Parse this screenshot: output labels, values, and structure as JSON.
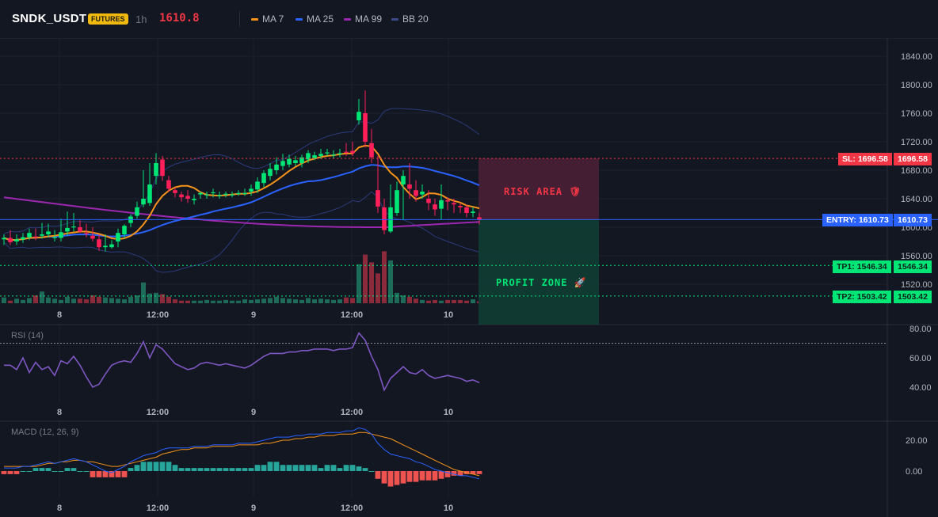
{
  "header": {
    "symbol": "SNDK_USDT",
    "badge": "FUTURES",
    "timeframe": "1h",
    "price": "1610.8",
    "indicators": [
      {
        "label": "MA 7",
        "color": "#f7931a"
      },
      {
        "label": "MA 25",
        "color": "#2962ff"
      },
      {
        "label": "MA 99",
        "color": "#9c27b0"
      },
      {
        "label": "BB 20",
        "color": "#3b4a8c"
      }
    ]
  },
  "levels": {
    "sl": {
      "label": "SL: 1696.58",
      "value": "1696.58",
      "price": 1696.58,
      "color": "#f23645"
    },
    "entry": {
      "label": "ENTRY: 1610.73",
      "value": "1610.73",
      "price": 1610.73,
      "color": "#2962ff"
    },
    "tp1": {
      "label": "TP1: 1546.34",
      "value": "1546.34",
      "price": 1546.34,
      "color": "#00e676"
    },
    "tp2": {
      "label": "TP2: 1503.42",
      "value": "1503.42",
      "price": 1503.42,
      "color": "#00e676"
    }
  },
  "zones": {
    "risk": {
      "label": "RISK AREA 🛡"
    },
    "profit": {
      "label": "PROFIT ZONE 🚀"
    }
  },
  "price_axis": {
    "ticks": [
      "1840.00",
      "1800.00",
      "1760.00",
      "1720.00",
      "1680.00",
      "1640.00",
      "1600.00",
      "1560.00",
      "1520.00"
    ],
    "values": [
      1840,
      1800,
      1760,
      1720,
      1680,
      1640,
      1600,
      1560,
      1520
    ]
  },
  "time_axis": {
    "labels": [
      "8",
      "12:00",
      "9",
      "12:00",
      "10"
    ]
  },
  "rsi": {
    "title": "RSI (14)",
    "ticks": [
      "80.00",
      "60.00",
      "40.00"
    ],
    "values": [
      80,
      60,
      40
    ]
  },
  "macd": {
    "title": "MACD (12, 26, 9)",
    "ticks": [
      "20.00",
      "0.00"
    ],
    "values": [
      20,
      0
    ]
  },
  "chart_data": {
    "type": "candlestick",
    "series": [
      {
        "name": "Price OHLC",
        "open": [
          1583,
          1585,
          1580,
          1583,
          1586,
          1587,
          1588,
          1590,
          1585,
          1585,
          1594,
          1600,
          1600,
          1592,
          1588,
          1583,
          1572,
          1572,
          1580,
          1590,
          1606,
          1616,
          1632,
          1634,
          1672,
          1695,
          1666,
          1652,
          1646,
          1644,
          1638,
          1646,
          1646,
          1648,
          1644,
          1646,
          1646,
          1648,
          1648,
          1650,
          1653,
          1662,
          1672,
          1680,
          1686,
          1688,
          1690,
          1690,
          1695,
          1697,
          1700,
          1704,
          1702,
          1704,
          1706,
          1707,
          1750,
          1760,
          1718,
          1652,
          1628,
          1594,
          1620,
          1660,
          1660,
          1652,
          1646,
          1640,
          1632,
          1626,
          1638,
          1634,
          1630,
          1628,
          1620,
          1614
        ],
        "close": [
          1585,
          1579,
          1583,
          1586,
          1592,
          1586,
          1590,
          1594,
          1586,
          1593,
          1599,
          1601,
          1594,
          1591,
          1584,
          1572,
          1574,
          1576,
          1592,
          1602,
          1615,
          1628,
          1640,
          1660,
          1690,
          1672,
          1654,
          1648,
          1642,
          1640,
          1640,
          1648,
          1646,
          1649,
          1645,
          1647,
          1646,
          1648,
          1648,
          1654,
          1664,
          1676,
          1682,
          1688,
          1693,
          1696,
          1694,
          1698,
          1704,
          1701,
          1703,
          1705,
          1702,
          1704,
          1705,
          1704,
          1762,
          1720,
          1698,
          1629,
          1596,
          1628,
          1652,
          1672,
          1654,
          1644,
          1650,
          1634,
          1625,
          1638,
          1636,
          1632,
          1628,
          1620,
          1622,
          1610
        ],
        "high": [
          1590,
          1596,
          1590,
          1592,
          1598,
          1598,
          1606,
          1605,
          1596,
          1612,
          1622,
          1620,
          1610,
          1605,
          1600,
          1590,
          1590,
          1582,
          1598,
          1604,
          1618,
          1636,
          1680,
          1690,
          1704,
          1700,
          1672,
          1656,
          1650,
          1652,
          1646,
          1650,
          1650,
          1654,
          1650,
          1650,
          1650,
          1652,
          1654,
          1660,
          1670,
          1680,
          1690,
          1698,
          1703,
          1702,
          1700,
          1702,
          1708,
          1706,
          1710,
          1710,
          1708,
          1710,
          1718,
          1720,
          1780,
          1792,
          1738,
          1700,
          1640,
          1660,
          1664,
          1680,
          1690,
          1666,
          1660,
          1652,
          1640,
          1660,
          1642,
          1640,
          1634,
          1632,
          1628,
          1620
        ],
        "low": [
          1575,
          1575,
          1575,
          1578,
          1582,
          1582,
          1584,
          1586,
          1580,
          1580,
          1588,
          1594,
          1592,
          1586,
          1580,
          1567,
          1566,
          1570,
          1572,
          1584,
          1600,
          1612,
          1628,
          1630,
          1660,
          1665,
          1650,
          1642,
          1636,
          1634,
          1632,
          1640,
          1640,
          1642,
          1640,
          1642,
          1642,
          1644,
          1644,
          1644,
          1648,
          1656,
          1666,
          1674,
          1680,
          1684,
          1686,
          1684,
          1690,
          1694,
          1696,
          1700,
          1696,
          1698,
          1700,
          1700,
          1744,
          1712,
          1690,
          1620,
          1590,
          1592,
          1616,
          1610,
          1640,
          1636,
          1640,
          1624,
          1616,
          1610,
          1624,
          1620,
          1620,
          1614,
          1614,
          1604
        ]
      },
      {
        "name": "Volume",
        "values": [
          9,
          4,
          7,
          5,
          8,
          12,
          18,
          9,
          7,
          5,
          10,
          7,
          7,
          6,
          12,
          10,
          9,
          8,
          7,
          6,
          10,
          12,
          32,
          15,
          16,
          14,
          10,
          6,
          4,
          4,
          4,
          4,
          5,
          4,
          4,
          5,
          4,
          4,
          6,
          5,
          6,
          7,
          8,
          10,
          8,
          7,
          6,
          5,
          8,
          6,
          7,
          6,
          5,
          6,
          9,
          8,
          60,
          75,
          63,
          46,
          80,
          66,
          16,
          12,
          10,
          7,
          5,
          4,
          5,
          4,
          5,
          5,
          5,
          4,
          6,
          3
        ]
      },
      {
        "name": "RSI",
        "values": [
          55,
          55,
          52,
          60,
          50,
          57,
          52,
          54,
          48,
          58,
          56,
          61,
          55,
          47,
          40,
          42,
          49,
          55,
          57,
          58,
          57,
          63,
          71,
          60,
          69,
          66,
          61,
          56,
          54,
          52,
          53,
          56,
          57,
          56,
          55,
          56,
          55,
          54,
          53,
          55,
          58,
          61,
          63,
          63,
          63,
          64,
          64,
          65,
          65,
          66,
          66,
          66,
          65,
          66,
          66,
          67,
          77,
          72,
          61,
          52,
          38,
          46,
          50,
          54,
          50,
          49,
          52,
          48,
          46,
          47,
          48,
          47,
          46,
          44,
          45,
          43
        ]
      },
      {
        "name": "MACD",
        "values": [
          2,
          2,
          2,
          3,
          3,
          4,
          5,
          6,
          5,
          6,
          7,
          8,
          7,
          6,
          4,
          2,
          0,
          -1,
          1,
          3,
          6,
          8,
          10,
          11,
          12,
          14,
          15,
          15,
          15,
          15,
          16,
          16,
          16,
          17,
          17,
          17,
          17,
          18,
          18,
          18,
          19,
          20,
          21,
          22,
          22,
          22,
          23,
          23,
          24,
          24,
          24,
          25,
          25,
          25,
          26,
          26,
          28,
          27,
          24,
          18,
          14,
          11,
          10,
          9,
          8,
          6,
          5,
          3,
          1,
          0,
          -1,
          -2,
          -3,
          -3,
          -4,
          -5
        ]
      },
      {
        "name": "Signal",
        "values": [
          3,
          3,
          3,
          3,
          3,
          3,
          4,
          5,
          5,
          6,
          6,
          7,
          7,
          6,
          6,
          5,
          4,
          3,
          3,
          4,
          5,
          6,
          7,
          8,
          9,
          11,
          12,
          13,
          14,
          14,
          15,
          15,
          15,
          16,
          16,
          16,
          16,
          17,
          17,
          17,
          17,
          18,
          18,
          19,
          20,
          20,
          21,
          21,
          22,
          22,
          23,
          23,
          23,
          24,
          24,
          24,
          25,
          25,
          24,
          23,
          22,
          21,
          19,
          17,
          15,
          13,
          11,
          9,
          7,
          5,
          3,
          1,
          0,
          -1,
          -2,
          -3
        ]
      }
    ]
  }
}
